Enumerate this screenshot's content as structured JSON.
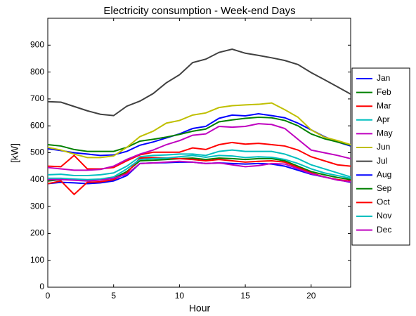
{
  "chart_data": {
    "type": "line",
    "title": "Electricity consumption - Week-end Days",
    "xlabel": "Hour",
    "ylabel": "[kW]",
    "x": [
      0,
      1,
      2,
      3,
      4,
      5,
      6,
      7,
      8,
      9,
      10,
      11,
      12,
      13,
      14,
      15,
      16,
      17,
      18,
      19,
      20,
      21,
      22,
      23
    ],
    "xlim": [
      0,
      23
    ],
    "xticks": [
      0,
      5,
      10,
      15,
      20
    ],
    "ylim": [
      0,
      1000
    ],
    "yticks": [
      0,
      100,
      200,
      300,
      400,
      500,
      600,
      700,
      800,
      900
    ],
    "grid": false,
    "legend": "right",
    "series": [
      {
        "name": "Jan",
        "color": "#0000ff",
        "values": [
          515,
          508,
          500,
          495,
          490,
          492,
          505,
          528,
          540,
          555,
          570,
          590,
          598,
          628,
          640,
          637,
          645,
          638,
          630,
          610,
          585,
          560,
          540,
          525
        ]
      },
      {
        "name": "Feb",
        "color": "#008000",
        "values": [
          530,
          525,
          512,
          505,
          505,
          505,
          520,
          543,
          550,
          558,
          568,
          580,
          588,
          615,
          622,
          628,
          632,
          630,
          620,
          600,
          570,
          552,
          540,
          528
        ]
      },
      {
        "name": "Mar",
        "color": "#ff0000",
        "values": [
          450,
          448,
          490,
          440,
          440,
          445,
          470,
          492,
          502,
          502,
          502,
          518,
          512,
          530,
          538,
          532,
          535,
          530,
          525,
          510,
          485,
          470,
          455,
          450
        ]
      },
      {
        "name": "Apr",
        "color": "#00bfbf",
        "values": [
          418,
          420,
          415,
          415,
          418,
          425,
          450,
          485,
          490,
          492,
          495,
          495,
          490,
          505,
          510,
          505,
          505,
          505,
          495,
          478,
          455,
          440,
          425,
          410
        ]
      },
      {
        "name": "May",
        "color": "#bf00bf",
        "values": [
          445,
          440,
          435,
          435,
          438,
          450,
          475,
          495,
          510,
          530,
          545,
          565,
          570,
          598,
          595,
          598,
          608,
          605,
          590,
          550,
          510,
          500,
          490,
          478
        ]
      },
      {
        "name": "Jun",
        "color": "#bfbf00",
        "values": [
          520,
          510,
          495,
          482,
          482,
          488,
          520,
          560,
          580,
          610,
          620,
          640,
          648,
          668,
          675,
          678,
          680,
          685,
          660,
          632,
          585,
          558,
          545,
          530
        ]
      },
      {
        "name": "Jul",
        "color": "#404040",
        "values": [
          690,
          688,
          672,
          656,
          643,
          638,
          673,
          692,
          720,
          760,
          790,
          835,
          848,
          873,
          885,
          870,
          862,
          853,
          843,
          828,
          798,
          772,
          745,
          718
        ]
      },
      {
        "name": "Aug",
        "color": "#0000ff",
        "values": [
          385,
          390,
          388,
          385,
          388,
          395,
          415,
          460,
          462,
          463,
          465,
          465,
          460,
          462,
          460,
          458,
          460,
          458,
          450,
          435,
          420,
          410,
          400,
          390
        ]
      },
      {
        "name": "Sep",
        "color": "#008000",
        "values": [
          395,
          400,
          400,
          398,
          400,
          405,
          430,
          470,
          472,
          475,
          478,
          480,
          475,
          480,
          478,
          475,
          478,
          478,
          470,
          450,
          430,
          418,
          408,
          400
        ]
      },
      {
        "name": "Oct",
        "color": "#ff0000",
        "values": [
          385,
          395,
          345,
          390,
          392,
          400,
          425,
          480,
          482,
          480,
          478,
          475,
          470,
          475,
          470,
          465,
          468,
          470,
          465,
          445,
          425,
          410,
          400,
          395
        ]
      },
      {
        "name": "Nov",
        "color": "#00bfbf",
        "values": [
          405,
          405,
          402,
          400,
          402,
          410,
          440,
          475,
          478,
          480,
          485,
          490,
          483,
          490,
          488,
          482,
          485,
          483,
          475,
          460,
          440,
          425,
          415,
          405
        ]
      },
      {
        "name": "Dec",
        "color": "#bf00bf",
        "values": [
          400,
          400,
          398,
          395,
          398,
          405,
          420,
          460,
          462,
          465,
          468,
          465,
          460,
          462,
          455,
          448,
          452,
          460,
          458,
          440,
          422,
          410,
          398,
          392
        ]
      }
    ]
  }
}
